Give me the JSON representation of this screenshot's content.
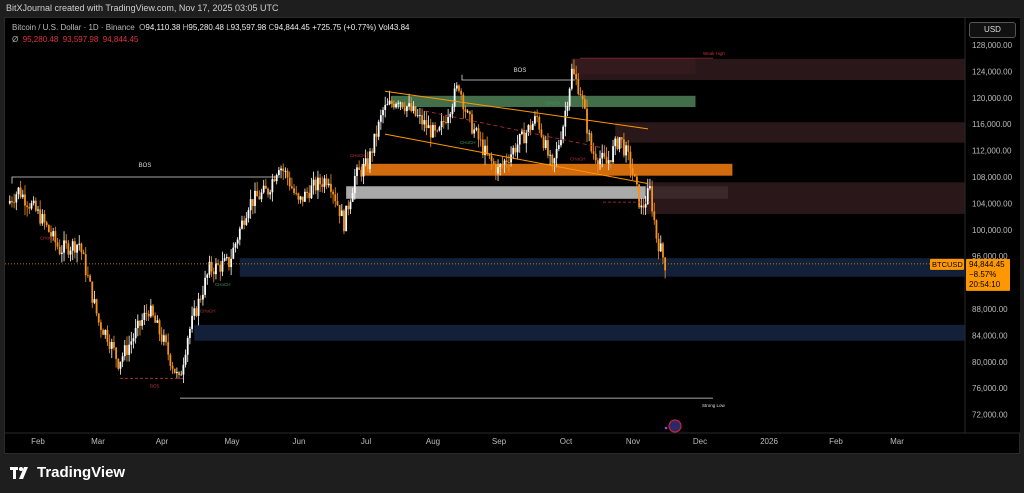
{
  "header": {
    "watermark_line": "BitXJournal created with TradingView.com, Nov 17, 2025 03:05 UTC",
    "symbol": "Bitcoin / U.S. Dollar · 1D · Binance",
    "ohlc": {
      "o": "94,110.38",
      "h": "95,280.48",
      "l": "93,597.98",
      "c": "94,844.45",
      "change": "+725.75 (+0.77%)",
      "vol": "Vol43.84"
    },
    "second_row": {
      "label": "Ø",
      "values": [
        "95,280.48",
        "93,597.98",
        "94,844.45"
      ]
    }
  },
  "axis": {
    "currency": "USD"
  },
  "footer": {
    "brand": "TradingView"
  },
  "price_tag": {
    "symbol": "BTCUSD",
    "price": "94,844.45",
    "change": "−8.57%",
    "countdown": "20:54:10"
  },
  "colors": {
    "bull": "#ffffff",
    "bear": "#f7931a",
    "accent": "#ff9800",
    "supply": "#8b2a33",
    "demand": "#4a7a52",
    "orange_zone": "#e8770f",
    "grey_zone": "#c8c8c8",
    "blue_zone": "#14233f"
  },
  "chart_data": {
    "type": "candlestick",
    "ylim": [
      70000,
      130000
    ],
    "yticks": [
      "128,000.00",
      "124,000.00",
      "120,000.00",
      "116,000.00",
      "112,000.00",
      "108,000.00",
      "104,000.00",
      "100,000.00",
      "96,000.00",
      "88,000.00",
      "84,000.00",
      "80,000.00",
      "76,000.00",
      "72,000.00"
    ],
    "xticks": [
      "Feb",
      "Mar",
      "Apr",
      "May",
      "Jun",
      "Jul",
      "Aug",
      "Sep",
      "Oct",
      "Nov",
      "Dec",
      "2026",
      "Feb",
      "Mar"
    ],
    "approx_close_path": [
      [
        "2025-01-18",
        104000
      ],
      [
        "2025-01-23",
        106000
      ],
      [
        "2025-02-02",
        102000
      ],
      [
        "2025-02-11",
        97000
      ],
      [
        "2025-02-20",
        98000
      ],
      [
        "2025-03-01",
        86000
      ],
      [
        "2025-03-05",
        84000
      ],
      [
        "2025-03-10",
        80000
      ],
      [
        "2025-03-14",
        82000
      ],
      [
        "2025-03-24",
        88000
      ],
      [
        "2025-03-31",
        83000
      ],
      [
        "2025-04-07",
        77000
      ],
      [
        "2025-04-11",
        84000
      ],
      [
        "2025-04-21",
        94000
      ],
      [
        "2025-04-30",
        95000
      ],
      [
        "2025-05-09",
        104000
      ],
      [
        "2025-05-18",
        106000
      ],
      [
        "2025-05-23",
        110000
      ],
      [
        "2025-05-27",
        108000
      ],
      [
        "2025-06-01",
        104000
      ],
      [
        "2025-06-06",
        106000
      ],
      [
        "2025-06-15",
        108000
      ],
      [
        "2025-06-22",
        101000
      ],
      [
        "2025-06-27",
        108000
      ],
      [
        "2025-07-03",
        110000
      ],
      [
        "2025-07-10",
        118000
      ],
      [
        "2025-07-17",
        120000
      ],
      [
        "2025-07-26",
        117000
      ],
      [
        "2025-08-04",
        114000
      ],
      [
        "2025-08-14",
        122000
      ],
      [
        "2025-08-18",
        117000
      ],
      [
        "2025-08-27",
        111000
      ],
      [
        "2025-09-01",
        109000
      ],
      [
        "2025-09-10",
        113000
      ],
      [
        "2025-09-19",
        117000
      ],
      [
        "2025-09-26",
        109000
      ],
      [
        "2025-10-01",
        116000
      ],
      [
        "2025-10-05",
        124000
      ],
      [
        "2025-10-09",
        121000
      ],
      [
        "2025-10-14",
        112000
      ],
      [
        "2025-10-21",
        110000
      ],
      [
        "2025-10-27",
        114000
      ],
      [
        "2025-11-01",
        110000
      ],
      [
        "2025-11-06",
        103000
      ],
      [
        "2025-11-10",
        106000
      ],
      [
        "2025-11-13",
        99000
      ],
      [
        "2025-11-17",
        94844
      ]
    ],
    "annotations": {
      "bos": "BOS",
      "choch": "CHoCH",
      "weak_high": "Weak High",
      "strong_low": "Strong Low"
    },
    "zones": [
      {
        "name": "supply-weak-high",
        "top": 125900,
        "bottom": 123600,
        "from": "2025-10-05",
        "to": "2025-12-01",
        "color": "#8b2a33"
      },
      {
        "name": "supply-extension",
        "top": 125900,
        "bottom": 122700,
        "from": "2025-10-05",
        "to": "2026-04-15",
        "color": "#2e1a1c"
      },
      {
        "name": "demand-green",
        "top": 120300,
        "bottom": 118600,
        "from": "2025-07-14",
        "to": "2025-12-01",
        "color": "#4a7a52"
      },
      {
        "name": "supply-116k",
        "top": 116300,
        "bottom": 113200,
        "from": "2025-10-25",
        "to": "2026-04-15",
        "color": "#2e1a1c"
      },
      {
        "name": "orange-zone",
        "top": 110000,
        "bottom": 108200,
        "from": "2025-06-30",
        "to": "2025-12-18",
        "color": "#e8770f"
      },
      {
        "name": "grey-zone",
        "top": 106600,
        "bottom": 104700,
        "from": "2025-06-23",
        "to": "2025-12-16",
        "color": "#c8c8c8"
      },
      {
        "name": "supply-104k",
        "top": 107200,
        "bottom": 102400,
        "from": "2025-11-08",
        "to": "2026-04-15",
        "color": "#2e1a1c"
      },
      {
        "name": "demand-93k",
        "top": 95700,
        "bottom": 92900,
        "from": "2025-05-05",
        "to": "2026-04-15",
        "color": "#14233f"
      },
      {
        "name": "demand-84k",
        "top": 85600,
        "bottom": 83200,
        "from": "2025-04-14",
        "to": "2026-04-15",
        "color": "#14233f"
      }
    ]
  }
}
